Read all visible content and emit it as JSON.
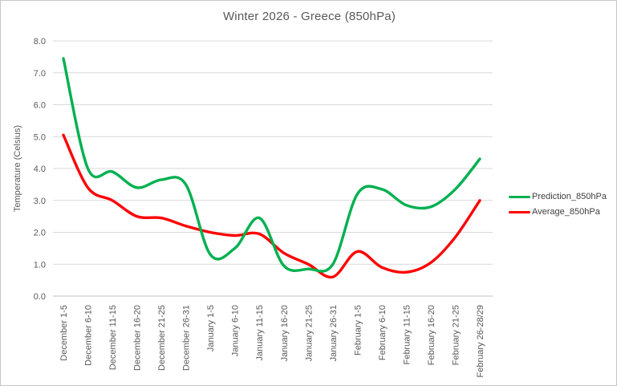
{
  "chart": {
    "title": "Winter 2026 - Greece (850hPa)",
    "y_axis_title": "Temperature (Celsius)"
  },
  "legend": {
    "items": [
      {
        "label": "Prediction_850hPa",
        "color": "#00b050"
      },
      {
        "label": "Average_850hPa",
        "color": "#ff0000"
      }
    ]
  },
  "chart_data": {
    "type": "line",
    "title": "Winter 2026 - Greece (850hPa)",
    "xlabel": "",
    "ylabel": "Temperature (Celsius)",
    "ylim": [
      0,
      8
    ],
    "y_tick_step": 1,
    "grid": true,
    "legend_position": "right",
    "line_style": "smooth",
    "categories": [
      "December 1-5",
      "December 6-10",
      "December 11-15",
      "December 16-20",
      "December 21-25",
      "December 26-31",
      "January 1-5",
      "January 6-10",
      "January 11-15",
      "January 16-20",
      "January 21-25",
      "January 26-31",
      "February 1-5",
      "February 6-10",
      "February 11-15",
      "February 16-20",
      "February 21-25",
      "February 26-28/29"
    ],
    "series": [
      {
        "name": "Prediction_850hPa",
        "color": "#00b050",
        "values": [
          7.45,
          4.0,
          3.9,
          3.4,
          3.65,
          3.5,
          1.3,
          1.5,
          2.45,
          0.95,
          0.85,
          1.0,
          3.2,
          3.35,
          2.85,
          2.8,
          3.35,
          4.3
        ]
      },
      {
        "name": "Average_850hPa",
        "color": "#ff0000",
        "values": [
          5.05,
          3.4,
          3.0,
          2.5,
          2.45,
          2.2,
          2.0,
          1.9,
          1.95,
          1.35,
          1.0,
          0.6,
          1.4,
          0.9,
          0.75,
          1.05,
          1.85,
          3.0
        ]
      }
    ]
  },
  "colors": {
    "text": "#595959",
    "gridline": "#d9d9d9",
    "axis_line": "#bfbfbf",
    "frame_border": "#c8c8c8"
  }
}
